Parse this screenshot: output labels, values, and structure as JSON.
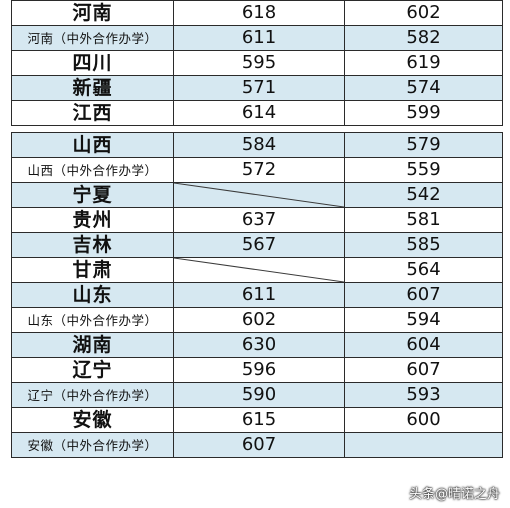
{
  "table": {
    "rows": [
      {
        "region": "河南",
        "v1": "618",
        "v2": "602",
        "style": "big",
        "shade": false
      },
      {
        "region": "河南（中外合作办学）",
        "v1": "611",
        "v2": "582",
        "style": "small",
        "shade": true
      },
      {
        "region": "四川",
        "v1": "595",
        "v2": "619",
        "style": "big",
        "shade": false
      },
      {
        "region": "新疆",
        "v1": "571",
        "v2": "574",
        "style": "big",
        "shade": true
      },
      {
        "region": "江西",
        "v1": "614",
        "v2": "599",
        "style": "big",
        "shade": false
      },
      {
        "gap": true
      },
      {
        "region": "山西",
        "v1": "584",
        "v2": "579",
        "style": "big",
        "shade": true
      },
      {
        "region": "山西（中外合作办学）",
        "v1": "572",
        "v2": "559",
        "style": "small",
        "shade": false
      },
      {
        "region": "宁夏",
        "v1": "",
        "v2": "542",
        "style": "big",
        "shade": true,
        "diag": true
      },
      {
        "region": "贵州",
        "v1": "637",
        "v2": "581",
        "style": "big",
        "shade": false
      },
      {
        "region": "吉林",
        "v1": "567",
        "v2": "585",
        "style": "big",
        "shade": true
      },
      {
        "region": "甘肃",
        "v1": "",
        "v2": "564",
        "style": "big",
        "shade": false,
        "diag": true
      },
      {
        "region": "山东",
        "v1": "611",
        "v2": "607",
        "style": "big",
        "shade": true
      },
      {
        "region": "山东（中外合作办学）",
        "v1": "602",
        "v2": "594",
        "style": "small",
        "shade": false
      },
      {
        "region": "湖南",
        "v1": "630",
        "v2": "604",
        "style": "big",
        "shade": true
      },
      {
        "region": "辽宁",
        "v1": "596",
        "v2": "607",
        "style": "big",
        "shade": false
      },
      {
        "region": "辽宁（中外合作办学）",
        "v1": "590",
        "v2": "593",
        "style": "small",
        "shade": true
      },
      {
        "region": "安徽",
        "v1": "615",
        "v2": "600",
        "style": "big",
        "shade": false
      },
      {
        "region": "安徽（中外合作办学）",
        "v1": "607",
        "v2": "",
        "style": "small",
        "shade": true
      }
    ]
  },
  "watermark": "头条@晴诺之舟",
  "colors": {
    "shade": "#d6e8f1",
    "border": "#2b2b2b"
  }
}
